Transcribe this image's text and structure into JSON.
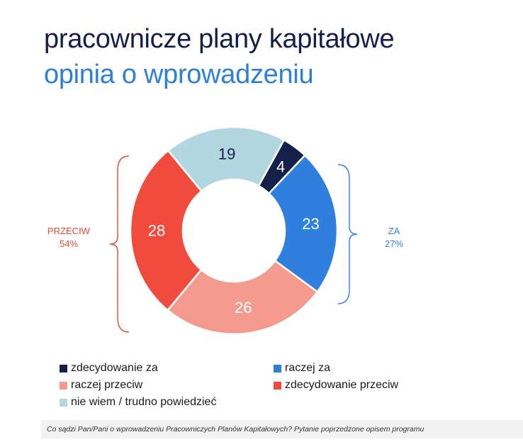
{
  "header": {
    "title": "pracownicze plany kapitałowe",
    "subtitle": "opinia o wprowadzeniu"
  },
  "chart_data": {
    "type": "pie",
    "title": "pracownicze plany kapitałowe",
    "subtitle": "opinia o wprowadzeniu",
    "donut": true,
    "slices": [
      {
        "label": "zdecydowanie za",
        "value": 4,
        "color": "#14204a"
      },
      {
        "label": "raczej za",
        "value": 23,
        "color": "#2f7fdf"
      },
      {
        "label": "raczej przeciw",
        "value": 26,
        "color": "#f59a8e"
      },
      {
        "label": "zdecydowanie przeciw",
        "value": 28,
        "color": "#f04b3c"
      },
      {
        "label": "nie wiem / trudno powiedzieć",
        "value": 19,
        "color": "#b2d7e0"
      }
    ],
    "groups": [
      {
        "label": "ZA",
        "value_text": "27%",
        "color": "#2f7fdf"
      },
      {
        "label": "PRZECIW",
        "value_text": "54%",
        "color": "#e8473a"
      }
    ],
    "legend_position": "bottom"
  },
  "legend": {
    "items": [
      {
        "label": "zdecydowanie za",
        "color": "#14204a"
      },
      {
        "label": "raczej za",
        "color": "#2f7fdf"
      },
      {
        "label": "raczej przeciw",
        "color": "#f59a8e"
      },
      {
        "label": "zdecydowanie przeciw",
        "color": "#f04b3c"
      },
      {
        "label": "nie wiem / trudno powiedzieć",
        "color": "#b2d7e0"
      }
    ]
  },
  "footnote": "Co sądzi Pan/Pani o wprowadzeniu Pracowniczych Planów Kapitałowych? Pytanie poprzedzone opisem programu"
}
